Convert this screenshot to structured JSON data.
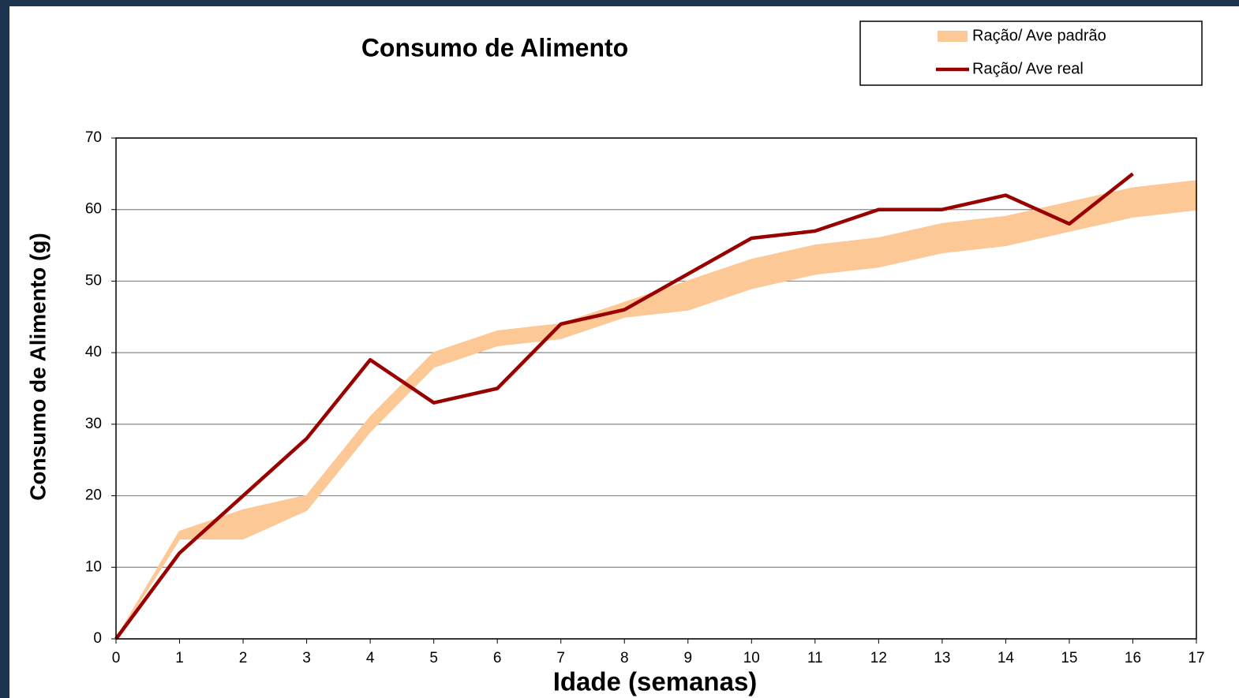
{
  "chart_data": {
    "type": "line",
    "title": "Consumo de Alimento",
    "x_label": "Idade (semanas)",
    "y_label": "Consumo de Alimento (g)",
    "x": [
      0,
      1,
      2,
      3,
      4,
      5,
      6,
      7,
      8,
      9,
      10,
      11,
      12,
      13,
      14,
      15,
      16,
      17
    ],
    "series": [
      {
        "name": "Ração/ Ave padrão",
        "color": "#fcc896",
        "kind": "band",
        "low": [
          0,
          14,
          14,
          18,
          29,
          38,
          41,
          42,
          45,
          46,
          49,
          51,
          52,
          54,
          55,
          57,
          59,
          60
        ],
        "high": [
          0,
          15,
          18,
          20,
          31,
          40,
          43,
          44,
          47,
          50,
          53,
          55,
          56,
          58,
          59,
          61,
          63,
          64
        ]
      },
      {
        "name": "Ração/ Ave real",
        "color": "#990000",
        "values": [
          0,
          12,
          20,
          28,
          39,
          33,
          35,
          44,
          46,
          51,
          56,
          57,
          60,
          60,
          62,
          58,
          65,
          null
        ]
      }
    ],
    "xlim": [
      0,
      17
    ],
    "xticks": [
      0,
      1,
      2,
      3,
      4,
      5,
      6,
      7,
      8,
      9,
      10,
      11,
      12,
      13,
      14,
      15,
      16,
      17
    ],
    "ylim": [
      0,
      70
    ],
    "yticks": [
      0,
      10,
      20,
      30,
      40,
      50,
      60,
      70
    ],
    "grid": true,
    "legend": "top-right"
  }
}
